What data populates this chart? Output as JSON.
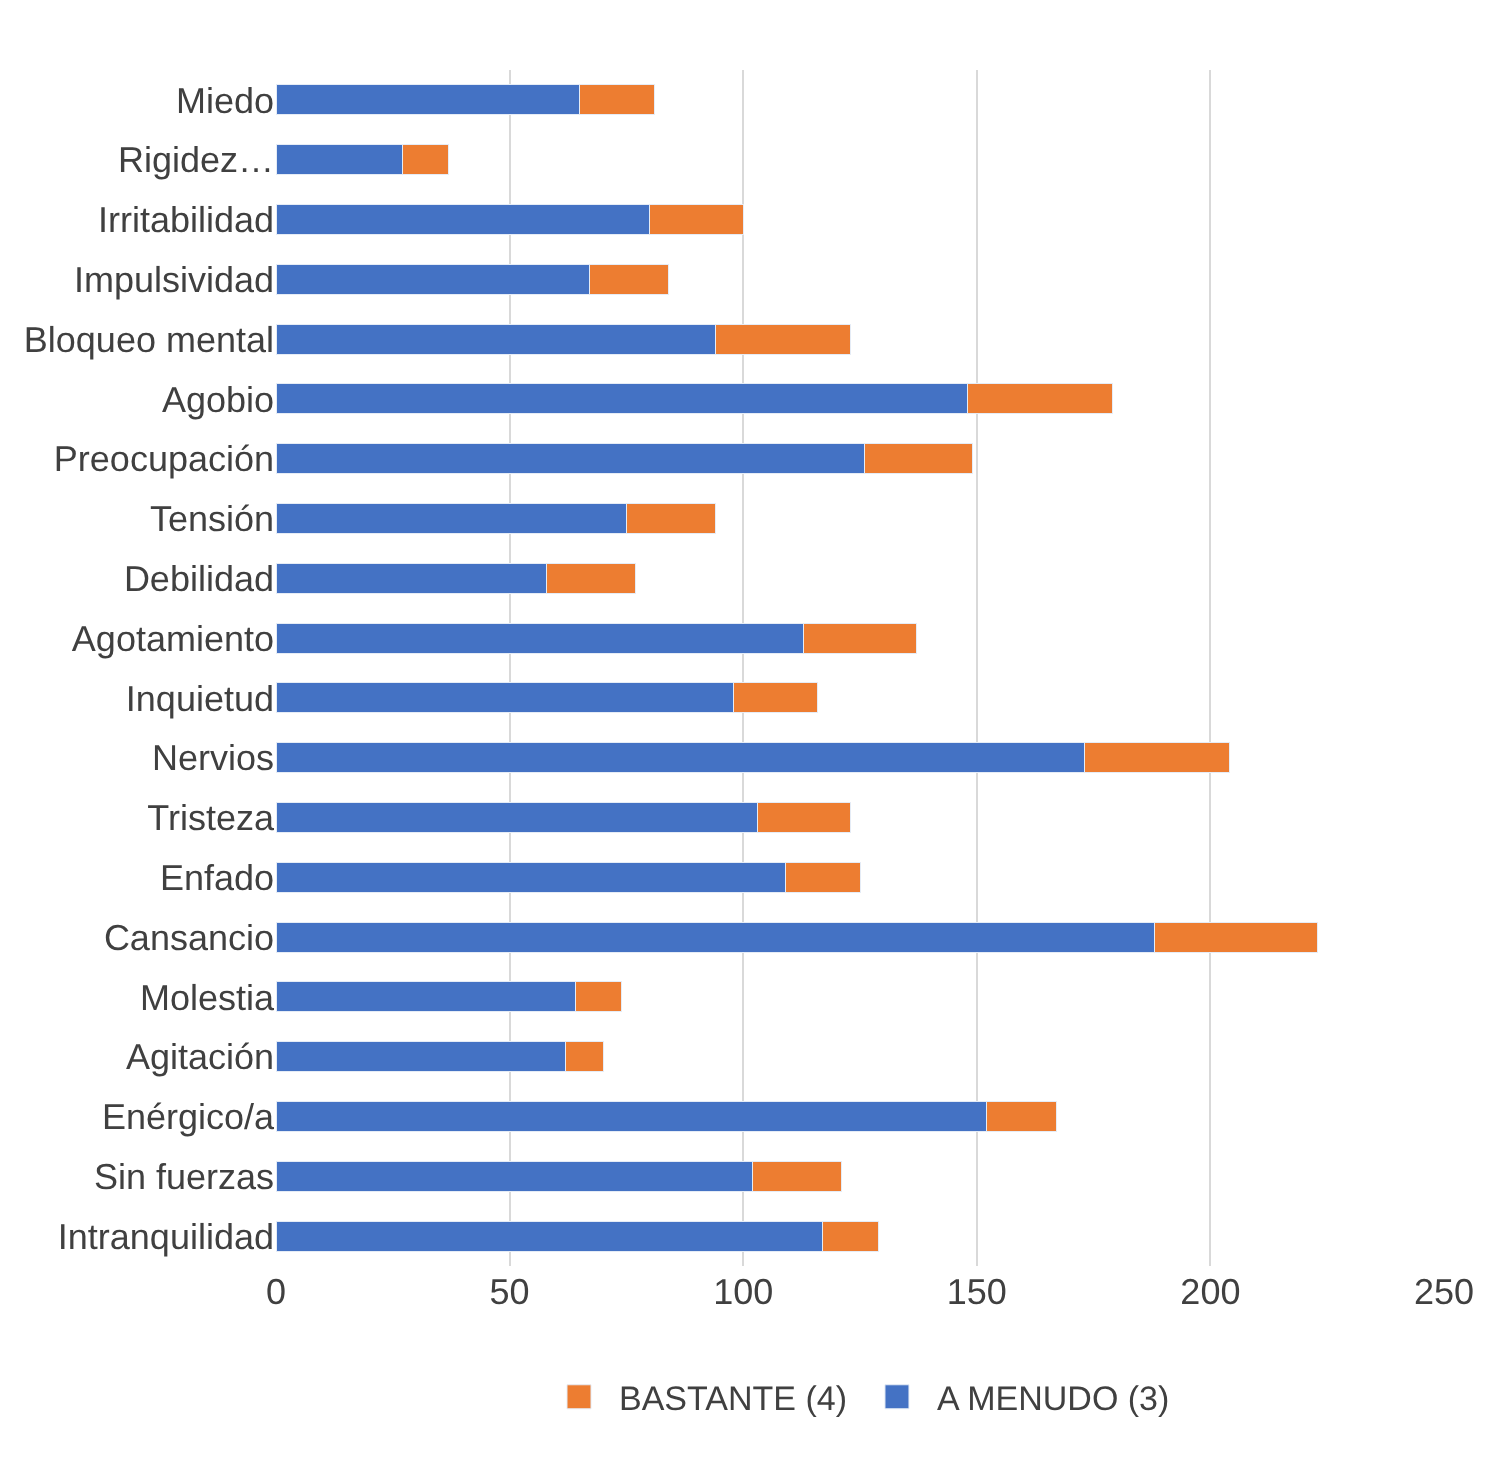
{
  "chart_data": {
    "type": "bar",
    "orientation": "horizontal",
    "stacked": true,
    "categories": [
      "Miedo",
      "Rigidez…",
      "Irritabilidad",
      "Impulsividad",
      "Bloqueo mental",
      "Agobio",
      "Preocupación",
      "Tensión",
      "Debilidad",
      "Agotamiento",
      "Inquietud",
      "Nervios",
      "Tristeza",
      "Enfado",
      "Cansancio",
      "Molestia",
      "Agitación",
      "Enérgico/a",
      "Sin fuerzas",
      "Intranquilidad"
    ],
    "series": [
      {
        "name": "A MENUDO (3)",
        "color": "#4472c4",
        "values": [
          65,
          27,
          80,
          67,
          94,
          148,
          126,
          75,
          58,
          113,
          98,
          173,
          103,
          109,
          188,
          64,
          62,
          152,
          102,
          117
        ]
      },
      {
        "name": "BASTANTE (4)",
        "color": "#ed7d31",
        "values": [
          16,
          10,
          20,
          17,
          29,
          31,
          23,
          19,
          19,
          24,
          18,
          31,
          20,
          16,
          35,
          10,
          8,
          15,
          19,
          12
        ]
      }
    ],
    "xlim": [
      0,
      250
    ],
    "xticks": [
      0,
      50,
      100,
      150,
      200,
      250
    ],
    "grid": "x",
    "legend": "bottom"
  }
}
